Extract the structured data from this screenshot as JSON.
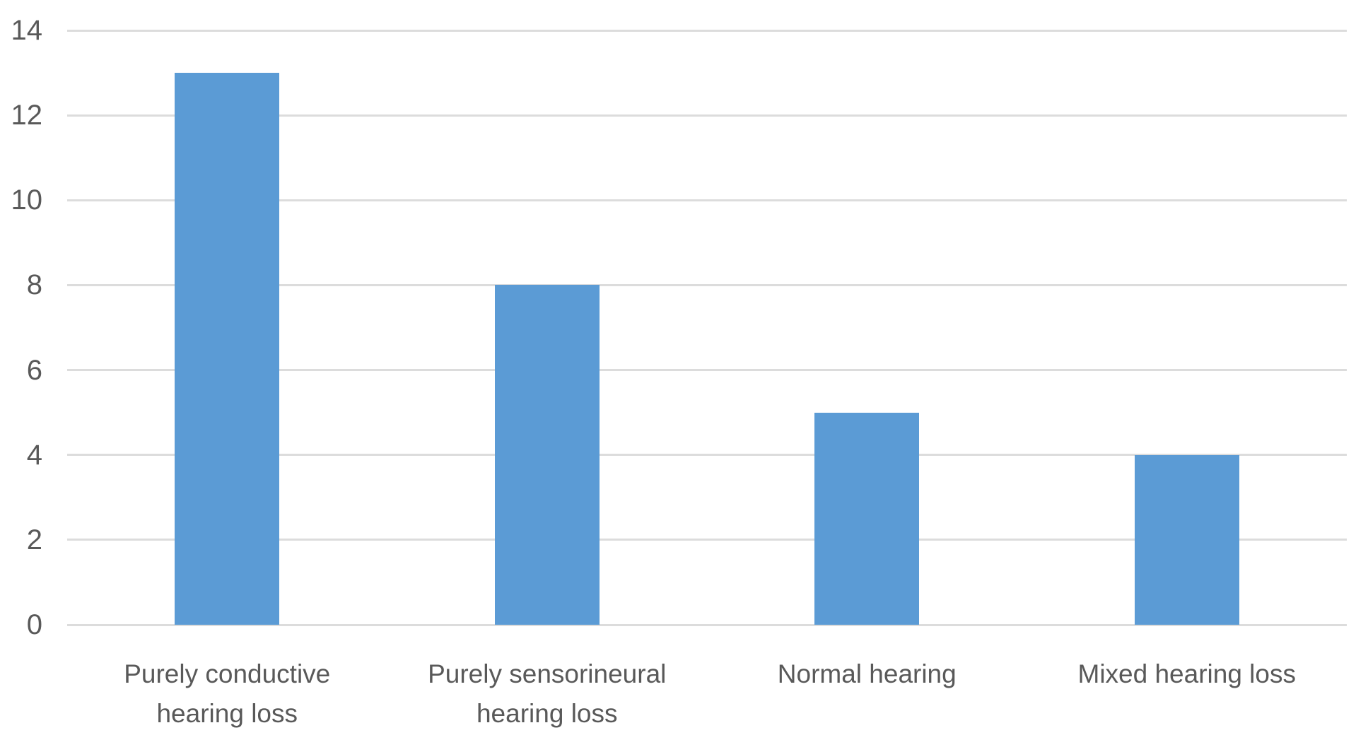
{
  "chart_data": {
    "type": "bar",
    "categories": [
      "Purely conductive hearing loss",
      "Purely sensorineural hearing loss",
      "Normal hearing",
      "Mixed hearing loss"
    ],
    "category_lines": [
      [
        "Purely conductive",
        "hearing loss"
      ],
      [
        "Purely sensorineural",
        "hearing loss"
      ],
      [
        "Normal hearing"
      ],
      [
        "Mixed hearing loss"
      ]
    ],
    "values": [
      13,
      8,
      5,
      4
    ],
    "title": "",
    "xlabel": "",
    "ylabel": "",
    "ylim": [
      0,
      14
    ],
    "yticks": [
      0,
      2,
      4,
      6,
      8,
      10,
      12,
      14
    ],
    "grid": true,
    "legend": "none",
    "bar_color": "#5b9bd5",
    "gridline_color": "#dcdcdc",
    "axis_text_color": "#595959"
  }
}
